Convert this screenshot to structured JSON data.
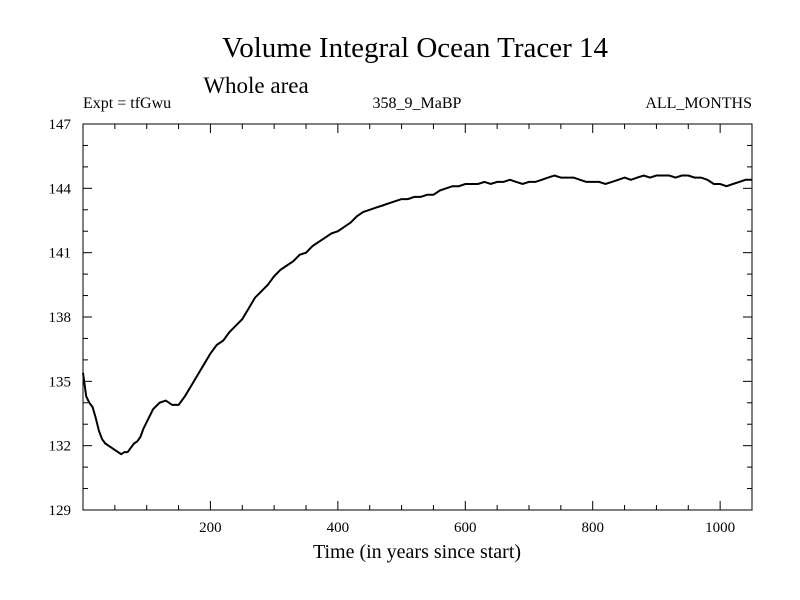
{
  "chart_data": {
    "type": "line",
    "title": "Volume Integral Ocean Tracer 14",
    "subtitle": "Whole area",
    "expt_label": "Expt = tfGwu",
    "period_label": "358_9_MaBP",
    "months_label": "ALL_MONTHS",
    "xlabel": "Time (in years since start)",
    "ylabel": "",
    "xlim": [
      0,
      1050
    ],
    "ylim": [
      129,
      147
    ],
    "x_ticks": [
      200,
      400,
      600,
      800,
      1000
    ],
    "y_ticks": [
      129,
      132,
      135,
      138,
      141,
      144,
      147
    ],
    "grid": false,
    "line_color": "#000000",
    "series": [
      {
        "x": [
          0,
          5,
          10,
          15,
          20,
          25,
          30,
          35,
          40,
          45,
          50,
          55,
          60,
          65,
          70,
          75,
          80,
          85,
          90,
          95,
          100,
          110,
          120,
          130,
          140,
          150,
          160,
          170,
          180,
          190,
          200,
          210,
          220,
          230,
          240,
          250,
          260,
          270,
          280,
          290,
          300,
          310,
          320,
          330,
          340,
          350,
          360,
          370,
          380,
          390,
          400,
          410,
          420,
          430,
          440,
          450,
          460,
          470,
          480,
          490,
          500,
          510,
          520,
          530,
          540,
          550,
          560,
          570,
          580,
          590,
          600,
          610,
          620,
          630,
          640,
          650,
          660,
          670,
          680,
          690,
          700,
          710,
          720,
          730,
          740,
          750,
          760,
          770,
          780,
          790,
          800,
          810,
          820,
          830,
          840,
          850,
          860,
          870,
          880,
          890,
          900,
          910,
          920,
          930,
          940,
          950,
          960,
          970,
          980,
          990,
          1000,
          1010,
          1020,
          1030,
          1040,
          1050
        ],
        "values": [
          135.4,
          134.3,
          134.0,
          133.8,
          133.3,
          132.7,
          132.3,
          132.1,
          132.0,
          131.9,
          131.8,
          131.7,
          131.6,
          131.7,
          131.7,
          131.9,
          132.1,
          132.2,
          132.4,
          132.8,
          133.1,
          133.7,
          134.0,
          134.1,
          133.9,
          133.9,
          134.3,
          134.8,
          135.3,
          135.8,
          136.3,
          136.7,
          136.9,
          137.3,
          137.6,
          137.9,
          138.4,
          138.9,
          139.2,
          139.5,
          139.9,
          140.2,
          140.4,
          140.6,
          140.9,
          141.0,
          141.3,
          141.5,
          141.7,
          141.9,
          142.0,
          142.2,
          142.4,
          142.7,
          142.9,
          143.0,
          143.1,
          143.2,
          143.3,
          143.4,
          143.5,
          143.5,
          143.6,
          143.6,
          143.7,
          143.7,
          143.9,
          144.0,
          144.1,
          144.1,
          144.2,
          144.2,
          144.2,
          144.3,
          144.2,
          144.3,
          144.3,
          144.4,
          144.3,
          144.2,
          144.3,
          144.3,
          144.4,
          144.5,
          144.6,
          144.5,
          144.5,
          144.5,
          144.4,
          144.3,
          144.3,
          144.3,
          144.2,
          144.3,
          144.4,
          144.5,
          144.4,
          144.5,
          144.6,
          144.5,
          144.6,
          144.6,
          144.6,
          144.5,
          144.6,
          144.6,
          144.5,
          144.5,
          144.4,
          144.2,
          144.2,
          144.1,
          144.2,
          144.3,
          144.4,
          144.4
        ]
      }
    ]
  }
}
